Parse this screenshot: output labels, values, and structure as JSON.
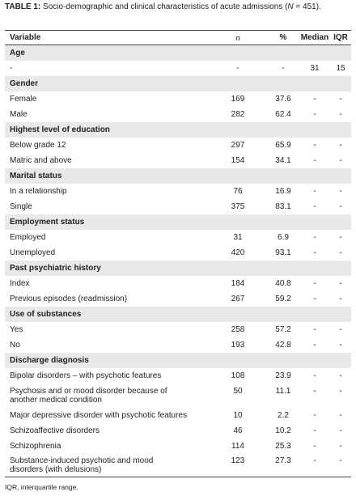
{
  "caption": {
    "label": "TABLE 1:",
    "text_before_n": "Socio-demographic and clinical characteristics of acute admissions (",
    "n_symbol": "N",
    "text_after_n": " = 451)."
  },
  "columns": {
    "variable": "Variable",
    "n": "n",
    "percent": "%",
    "median": "Median",
    "iqr": "IQR"
  },
  "sections": {
    "age": "Age",
    "gender": "Gender",
    "education": "Highest level of education",
    "marital": "Marital status",
    "employment": "Employment status",
    "psych_history": "Past psychiatric history",
    "substances": "Use of substances",
    "discharge": "Discharge diagnosis"
  },
  "rows": {
    "age": {
      "label": "-",
      "n": "-",
      "p": "-",
      "med": "31",
      "iqr": "15"
    },
    "female": {
      "label": "Female",
      "n": "169",
      "p": "37.6",
      "med": "-",
      "iqr": "-"
    },
    "male": {
      "label": "Male",
      "n": "282",
      "p": "62.4",
      "med": "-",
      "iqr": "-"
    },
    "below12": {
      "label": "Below grade 12",
      "n": "297",
      "p": "65.9",
      "med": "-",
      "iqr": "-"
    },
    "matric": {
      "label": "Matric and above",
      "n": "154",
      "p": "34.1",
      "med": "-",
      "iqr": "-"
    },
    "relationship": {
      "label": "In a relationship",
      "n": "76",
      "p": "16.9",
      "med": "-",
      "iqr": "-"
    },
    "single": {
      "label": "Single",
      "n": "375",
      "p": "83.1",
      "med": "-",
      "iqr": "-"
    },
    "employed": {
      "label": "Employed",
      "n": "31",
      "p": "6.9",
      "med": "-",
      "iqr": "-"
    },
    "unemployed": {
      "label": "Unemployed",
      "n": "420",
      "p": "93.1",
      "med": "-",
      "iqr": "-"
    },
    "index": {
      "label": "Index",
      "n": "184",
      "p": "40.8",
      "med": "-",
      "iqr": "-"
    },
    "previous": {
      "label": "Previous episodes (readmission)",
      "n": "267",
      "p": "59.2",
      "med": "-",
      "iqr": "-"
    },
    "yes": {
      "label": "Yes",
      "n": "258",
      "p": "57.2",
      "med": "-",
      "iqr": "-"
    },
    "no": {
      "label": "No",
      "n": "193",
      "p": "42.8",
      "med": "-",
      "iqr": "-"
    },
    "bipolar": {
      "label": "Bipolar disorders – with psychotic features",
      "n": "108",
      "p": "23.9",
      "med": "-",
      "iqr": "-"
    },
    "psychosis_medical": {
      "label_line1": "Psychosis and or mood disorder because of",
      "label_line2": "another medical condition",
      "n": "50",
      "p": "11.1",
      "med": "-",
      "iqr": "-"
    },
    "mdd": {
      "label": "Major depressive disorder with psychotic features",
      "n": "10",
      "p": "2.2",
      "med": "-",
      "iqr": "-"
    },
    "schizoaffective": {
      "label": "Schizoaffective disorders",
      "n": "46",
      "p": "10.2",
      "med": "-",
      "iqr": "-"
    },
    "schizophrenia": {
      "label": "Schizophrenia",
      "n": "114",
      "p": "25.3",
      "med": "-",
      "iqr": "-"
    },
    "substance_induced": {
      "label_line1": "Substance-induced psychotic and mood",
      "label_line2": "disorders (with delusions)",
      "n": "123",
      "p": "27.3",
      "med": "-",
      "iqr": "-"
    }
  },
  "footnote": "IQR, interquartile range."
}
